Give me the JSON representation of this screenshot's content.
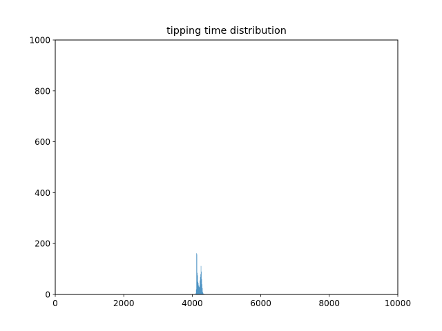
{
  "chart_data": {
    "type": "bar",
    "title": "tipping time distribution",
    "xlabel": "",
    "ylabel": "",
    "xlim": [
      0,
      10000
    ],
    "ylim": [
      0,
      1000
    ],
    "x_ticks": [
      "0",
      "2000",
      "4000",
      "6000",
      "8000",
      "10000"
    ],
    "y_ticks": [
      "0",
      "200",
      "400",
      "600",
      "800",
      "1000"
    ],
    "grid": false,
    "bar_color": "#1f77b4",
    "bin_width": 10,
    "bins": [
      {
        "x": 4100,
        "count": 5
      },
      {
        "x": 4110,
        "count": 20
      },
      {
        "x": 4120,
        "count": 162
      },
      {
        "x": 4130,
        "count": 158
      },
      {
        "x": 4140,
        "count": 85
      },
      {
        "x": 4150,
        "count": 75
      },
      {
        "x": 4160,
        "count": 50
      },
      {
        "x": 4170,
        "count": 45
      },
      {
        "x": 4180,
        "count": 35
      },
      {
        "x": 4190,
        "count": 30
      },
      {
        "x": 4200,
        "count": 28
      },
      {
        "x": 4210,
        "count": 35
      },
      {
        "x": 4220,
        "count": 55
      },
      {
        "x": 4230,
        "count": 68
      },
      {
        "x": 4240,
        "count": 80
      },
      {
        "x": 4250,
        "count": 112
      },
      {
        "x": 4260,
        "count": 90
      },
      {
        "x": 4270,
        "count": 60
      },
      {
        "x": 4280,
        "count": 40
      },
      {
        "x": 4290,
        "count": 25
      },
      {
        "x": 4300,
        "count": 10
      },
      {
        "x": 4310,
        "count": 6
      },
      {
        "x": 4320,
        "count": 3
      },
      {
        "x": 4340,
        "count": 2
      },
      {
        "x": 4360,
        "count": 2
      },
      {
        "x": 4400,
        "count": 1
      },
      {
        "x": 4450,
        "count": 1
      }
    ]
  }
}
